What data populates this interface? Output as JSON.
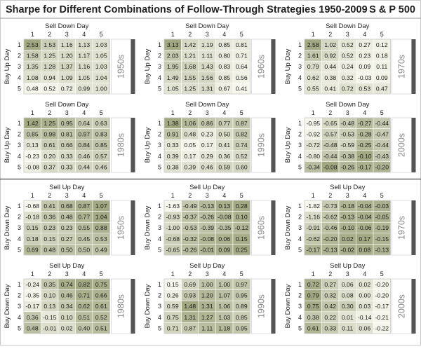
{
  "header": {
    "title": "Sharpe for Different Combinations of Follow-Through Strategies 1950-2009",
    "index": "S & P 500"
  },
  "chart_data": [
    {
      "type": "heatmap",
      "decade": "1950s",
      "col_title": "Sell Down Day",
      "row_title": "Buy Up Day",
      "col_ticks": [
        "1",
        "2",
        "3",
        "4",
        "5"
      ],
      "row_ticks": [
        "1",
        "2",
        "3",
        "4",
        "5"
      ],
      "values": [
        [
          2.53,
          1.53,
          1.16,
          1.13,
          1.03
        ],
        [
          1.58,
          1.25,
          1.2,
          1.17,
          1.05
        ],
        [
          1.35,
          1.28,
          1.37,
          1.16,
          1.03
        ],
        [
          1.08,
          0.94,
          1.09,
          1.05,
          1.04
        ],
        [
          0.48,
          0.52,
          0.72,
          0.99,
          1.0
        ]
      ]
    },
    {
      "type": "heatmap",
      "decade": "1960s",
      "col_title": "Sell Down Day",
      "row_title": "Buy Up Day",
      "col_ticks": [
        "1",
        "2",
        "3",
        "4",
        "5"
      ],
      "row_ticks": [
        "1",
        "2",
        "3",
        "4",
        "5"
      ],
      "values": [
        [
          3.13,
          1.42,
          1.19,
          0.85,
          0.81
        ],
        [
          2.03,
          1.21,
          1.11,
          0.8,
          0.71
        ],
        [
          1.95,
          1.68,
          1.43,
          0.83,
          0.64
        ],
        [
          1.49,
          1.55,
          1.56,
          0.85,
          0.56
        ],
        [
          1.05,
          1.25,
          1.31,
          0.67,
          0.41
        ]
      ]
    },
    {
      "type": "heatmap",
      "decade": "1970s",
      "col_title": "Sell Down Day",
      "row_title": "Buy Up Day",
      "col_ticks": [
        "1",
        "2",
        "3",
        "4",
        "5"
      ],
      "row_ticks": [
        "1",
        "2",
        "3",
        "4",
        "5"
      ],
      "values": [
        [
          2.58,
          1.02,
          0.52,
          0.27,
          0.12
        ],
        [
          1.61,
          0.92,
          0.52,
          0.23,
          0.18
        ],
        [
          0.79,
          0.44,
          0.24,
          0.09,
          0.11
        ],
        [
          0.62,
          0.38,
          0.32,
          -0.03,
          0.09
        ],
        [
          0.55,
          0.41,
          0.72,
          0.53,
          0.47
        ]
      ]
    },
    {
      "type": "heatmap",
      "decade": "1980s",
      "col_title": "Sell Down Day",
      "row_title": "Buy Up Day",
      "col_ticks": [
        "1",
        "2",
        "3",
        "4",
        "5"
      ],
      "row_ticks": [
        "1",
        "2",
        "3",
        "4",
        "5"
      ],
      "values": [
        [
          1.42,
          1.25,
          0.95,
          0.64,
          0.63
        ],
        [
          0.85,
          0.98,
          0.81,
          0.97,
          0.83
        ],
        [
          0.13,
          0.61,
          0.66,
          0.84,
          0.85
        ],
        [
          -0.23,
          0.2,
          0.33,
          0.46,
          0.57
        ],
        [
          -0.08,
          0.37,
          0.33,
          0.44,
          0.46
        ]
      ]
    },
    {
      "type": "heatmap",
      "decade": "1990s",
      "col_title": "Sell Down Day",
      "row_title": "Buy Up Day",
      "col_ticks": [
        "1",
        "2",
        "3",
        "4",
        "5"
      ],
      "row_ticks": [
        "1",
        "2",
        "3",
        "4",
        "5"
      ],
      "values": [
        [
          1.38,
          1.06,
          0.86,
          0.77,
          0.87
        ],
        [
          0.91,
          0.48,
          0.23,
          0.5,
          0.82
        ],
        [
          0.33,
          0.05,
          0.17,
          0.41,
          0.74
        ],
        [
          0.39,
          0.17,
          0.29,
          0.36,
          0.52
        ],
        [
          0.38,
          0.39,
          0.46,
          0.59,
          0.6
        ]
      ]
    },
    {
      "type": "heatmap",
      "decade": "2000s",
      "col_title": "Sell Down Day",
      "row_title": "Buy Up Day",
      "col_ticks": [
        "1",
        "2",
        "3",
        "4",
        "5"
      ],
      "row_ticks": [
        "1",
        "2",
        "3",
        "4",
        "5"
      ],
      "values": [
        [
          -0.95,
          -0.65,
          -0.48,
          -0.27,
          -0.44
        ],
        [
          -0.92,
          -0.57,
          -0.53,
          -0.28,
          -0.47
        ],
        [
          -0.72,
          -0.48,
          -0.59,
          -0.25,
          -0.44
        ],
        [
          -0.8,
          -0.44,
          -0.38,
          -0.1,
          -0.43
        ],
        [
          -0.34,
          -0.08,
          -0.26,
          -0.17,
          -0.2
        ]
      ]
    },
    {
      "type": "heatmap",
      "decade": "1950s",
      "col_title": "Sell Up Day",
      "row_title": "Buy Down Day",
      "col_ticks": [
        "1",
        "2",
        "3",
        "4",
        "5"
      ],
      "row_ticks": [
        "1",
        "2",
        "3",
        "4",
        "5"
      ],
      "values": [
        [
          -0.68,
          0.41,
          0.68,
          0.87,
          1.07
        ],
        [
          -0.18,
          0.36,
          0.48,
          0.77,
          1.04
        ],
        [
          0.15,
          0.23,
          0.23,
          0.55,
          0.88
        ],
        [
          0.18,
          0.15,
          0.27,
          0.45,
          0.53
        ],
        [
          0.69,
          0.48,
          0.5,
          0.5,
          0.49
        ]
      ]
    },
    {
      "type": "heatmap",
      "decade": "1960s",
      "col_title": "Sell Up Day",
      "row_title": "Buy Down Day",
      "col_ticks": [
        "1",
        "2",
        "3",
        "4",
        "5"
      ],
      "row_ticks": [
        "1",
        "2",
        "3",
        "4",
        "5"
      ],
      "values": [
        [
          -1.63,
          -0.49,
          -0.13,
          0.13,
          0.28
        ],
        [
          -0.93,
          -0.37,
          -0.26,
          -0.08,
          0.1
        ],
        [
          -1.0,
          -0.53,
          -0.39,
          -0.35,
          -0.12
        ],
        [
          -0.68,
          -0.32,
          -0.08,
          0.06,
          0.15
        ],
        [
          -0.65,
          -0.26,
          -0.01,
          0.09,
          0.25
        ]
      ]
    },
    {
      "type": "heatmap",
      "decade": "1970s",
      "col_title": "Sell Up Day",
      "row_title": "Buy Down Day",
      "col_ticks": [
        "1",
        "2",
        "3",
        "4",
        "5"
      ],
      "row_ticks": [
        "1",
        "2",
        "3",
        "4",
        "5"
      ],
      "values": [
        [
          -1.82,
          -0.73,
          -0.18,
          -0.04,
          -0.03
        ],
        [
          -1.16,
          -0.62,
          -0.13,
          -0.04,
          -0.05
        ],
        [
          -0.91,
          -0.46,
          -0.1,
          -0.06,
          -0.19
        ],
        [
          -0.62,
          -0.2,
          0.02,
          0.17,
          -0.15
        ],
        [
          -0.17,
          -0.13,
          -0.02,
          0.08,
          -0.13
        ]
      ]
    },
    {
      "type": "heatmap",
      "decade": "1980s",
      "col_title": "Sell Up Day",
      "row_title": "Buy Down Day",
      "col_ticks": [
        "1",
        "2",
        "3",
        "4",
        "5"
      ],
      "row_ticks": [
        "1",
        "2",
        "3",
        "4",
        "5"
      ],
      "values": [
        [
          -0.24,
          0.35,
          0.74,
          0.82,
          0.75
        ],
        [
          -0.35,
          0.1,
          0.46,
          0.71,
          0.66
        ],
        [
          -0.17,
          0.13,
          0.34,
          0.62,
          0.61
        ],
        [
          0.36,
          -0.15,
          0.1,
          0.51,
          0.52
        ],
        [
          0.48,
          -0.01,
          0.02,
          0.4,
          0.51
        ]
      ]
    },
    {
      "type": "heatmap",
      "decade": "1990s",
      "col_title": "Sell Up Day",
      "row_title": "Buy Down Day",
      "col_ticks": [
        "1",
        "2",
        "3",
        "4",
        "5"
      ],
      "row_ticks": [
        "1",
        "2",
        "3",
        "4",
        "5"
      ],
      "values": [
        [
          0.15,
          0.69,
          1.0,
          1.0,
          0.97
        ],
        [
          0.26,
          0.93,
          1.2,
          1.07,
          0.95
        ],
        [
          0.59,
          1.48,
          1.31,
          1.06,
          0.89
        ],
        [
          0.75,
          1.31,
          1.27,
          1.03,
          0.85
        ],
        [
          0.71,
          0.87,
          1.11,
          1.18,
          0.95
        ]
      ]
    },
    {
      "type": "heatmap",
      "decade": "2000s",
      "col_title": "Sell Up Day",
      "row_title": "Buy Down Day",
      "col_ticks": [
        "1",
        "2",
        "3",
        "4",
        "5"
      ],
      "row_ticks": [
        "1",
        "2",
        "3",
        "4",
        "5"
      ],
      "values": [
        [
          0.72,
          0.27,
          0.06,
          0.02,
          -0.2
        ],
        [
          0.79,
          0.32,
          0.08,
          0.0,
          -0.2
        ],
        [
          0.75,
          0.42,
          0.3,
          0.03,
          -0.17
        ],
        [
          0.38,
          0.22,
          0.01,
          -0.14,
          -0.21
        ],
        [
          0.61,
          0.33,
          0.11,
          0.06,
          -0.22
        ]
      ]
    }
  ]
}
